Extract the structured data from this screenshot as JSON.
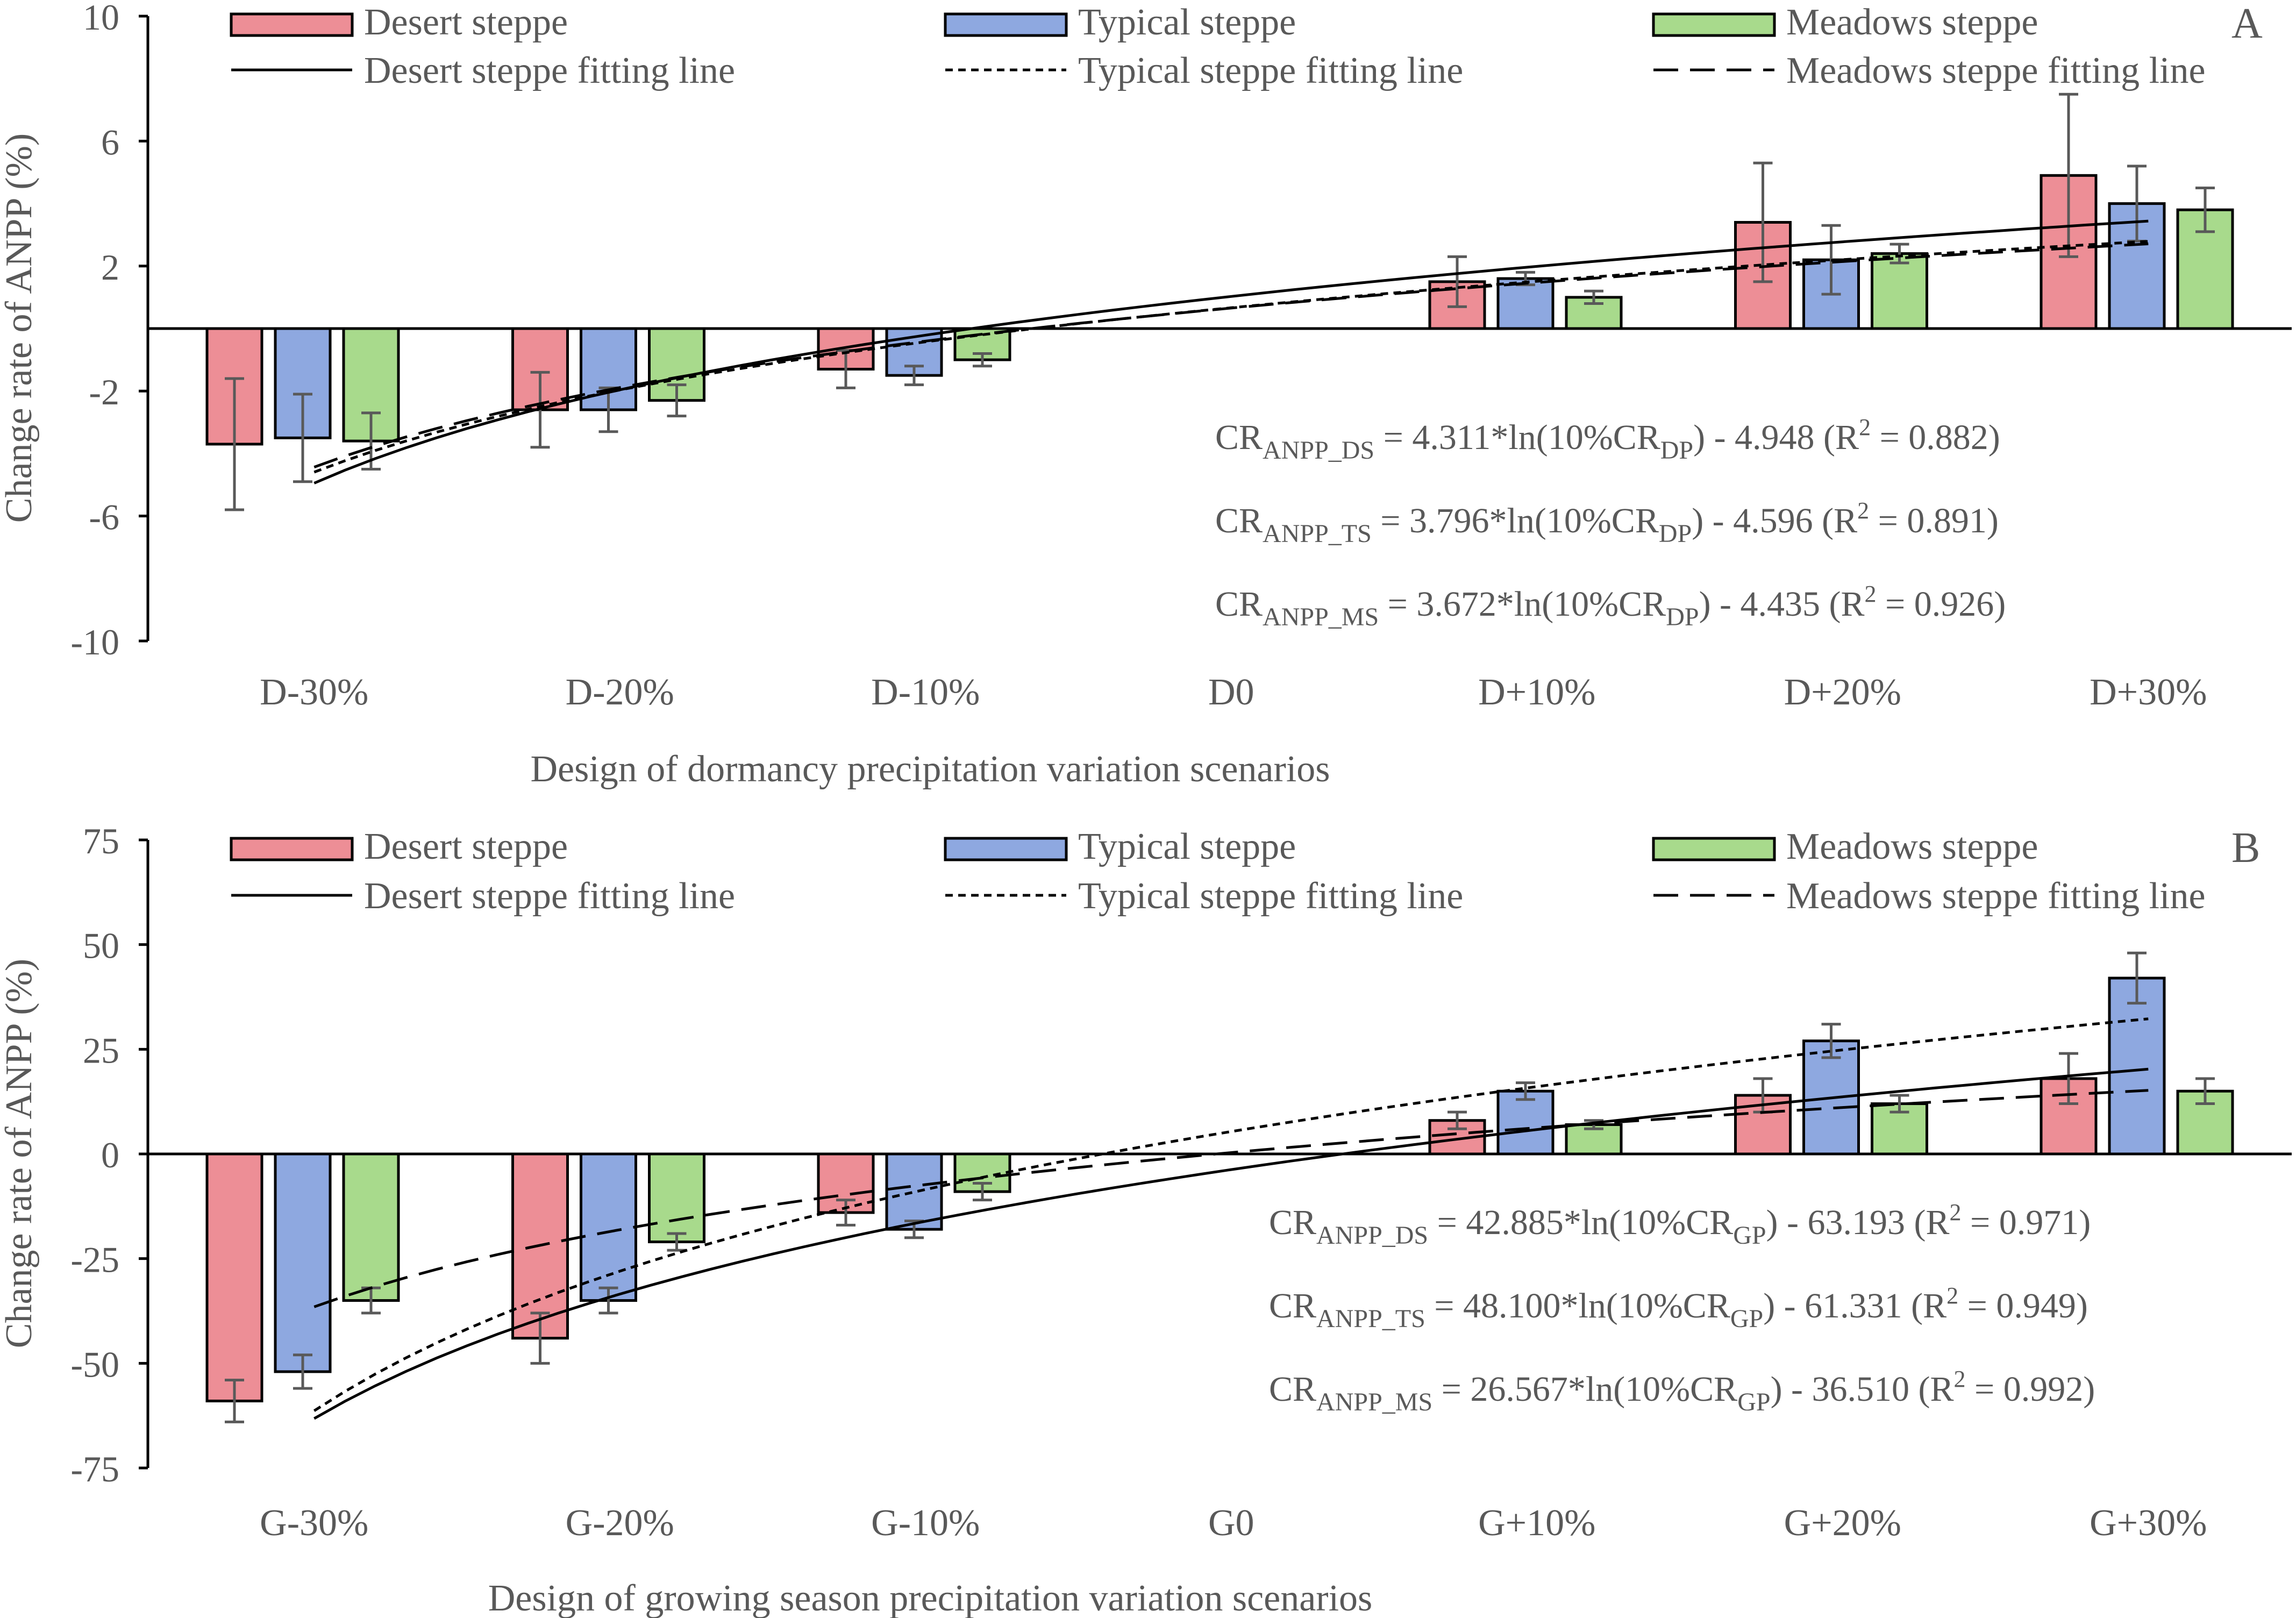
{
  "figure_label": "Change rate of ANPP under precipitation variation scenarios",
  "colors": {
    "desert": "#ED8E96",
    "typical": "#8EA8E0",
    "meadows": "#A8DA8C",
    "axis": "#000000",
    "text": "#595959"
  },
  "chart_data": [
    {
      "type": "bar",
      "panel_label": "A",
      "title": "",
      "xlabel": "Design of dormancy precipitation variation  scenarios",
      "ylabel": "Change rate of ANPP (%)",
      "ylim": [
        -10,
        10
      ],
      "yticks": [
        -10,
        -6,
        -2,
        2,
        6,
        10
      ],
      "grid": false,
      "legend_position": "top",
      "categories": [
        "D-30%",
        "D-20%",
        "D-10%",
        "D0",
        "D+10%",
        "D+20%",
        "D+30%"
      ],
      "series": [
        {
          "name": "Desert steppe",
          "color_key": "desert",
          "values": [
            -3.7,
            -2.6,
            -1.3,
            null,
            1.5,
            3.4,
            4.9
          ],
          "errors": [
            2.1,
            1.2,
            0.6,
            null,
            0.8,
            1.9,
            2.6
          ]
        },
        {
          "name": "Typical steppe",
          "color_key": "typical",
          "values": [
            -3.5,
            -2.6,
            -1.5,
            null,
            1.6,
            2.2,
            4.0
          ],
          "errors": [
            1.4,
            0.7,
            0.3,
            null,
            0.2,
            1.1,
            1.2
          ]
        },
        {
          "name": "Meadows steppe",
          "color_key": "meadows",
          "values": [
            -3.6,
            -2.3,
            -1.0,
            null,
            1.0,
            2.4,
            3.8
          ],
          "errors": [
            0.9,
            0.5,
            0.2,
            null,
            0.2,
            0.3,
            0.7
          ]
        }
      ],
      "fitting_lines": [
        {
          "name": "Desert steppe fitting line",
          "style": "solid",
          "a": 4.311,
          "b": -4.948
        },
        {
          "name": "Typical steppe fitting line",
          "style": "dotted",
          "a": 3.796,
          "b": -4.596
        },
        {
          "name": "Meadows steppe fitting line",
          "style": "dashed",
          "a": 3.672,
          "b": -4.435
        }
      ],
      "equations": [
        {
          "lhs": "CR",
          "lhs_sub": "ANPP_DS",
          "mid": " = 4.311*ln(10%CR",
          "mid_sub": "DP",
          "rhs_pre": ")  - 4.948  (R",
          "sup": "2",
          "rhs_post": " = 0.882)"
        },
        {
          "lhs": "CR",
          "lhs_sub": "ANPP_TS",
          "mid": " = 3.796*ln(10%CR",
          "mid_sub": "DP",
          "rhs_pre": ")  - 4.596  (R",
          "sup": "2",
          "rhs_post": " = 0.891)"
        },
        {
          "lhs": "CR",
          "lhs_sub": "ANPP_MS",
          "mid": " = 3.672*ln(10%CR",
          "mid_sub": "DP",
          "rhs_pre": ")  - 4.435  (R",
          "sup": "2",
          "rhs_post": " = 0.926)"
        }
      ]
    },
    {
      "type": "bar",
      "panel_label": "B",
      "title": "",
      "xlabel": "Design of growing  season precipitation variation  scenarios",
      "ylabel": "Change rate of ANPP (%)",
      "ylim": [
        -75,
        75
      ],
      "yticks": [
        -75,
        -50,
        -25,
        0,
        25,
        50,
        75
      ],
      "grid": false,
      "legend_position": "top",
      "categories": [
        "G-30%",
        "G-20%",
        "G-10%",
        "G0",
        "G+10%",
        "G+20%",
        "G+30%"
      ],
      "series": [
        {
          "name": "Desert steppe",
          "color_key": "desert",
          "values": [
            -59,
            -44,
            -14,
            null,
            8,
            14,
            18
          ],
          "errors": [
            5,
            6,
            3,
            null,
            2,
            4,
            6
          ]
        },
        {
          "name": "Typical steppe",
          "color_key": "typical",
          "values": [
            -52,
            -35,
            -18,
            null,
            15,
            27,
            42
          ],
          "errors": [
            4,
            3,
            2,
            null,
            2,
            4,
            6
          ]
        },
        {
          "name": "Meadows steppe",
          "color_key": "meadows",
          "values": [
            -35,
            -21,
            -9,
            null,
            7,
            12,
            15
          ],
          "errors": [
            3,
            2,
            2,
            null,
            1,
            2,
            3
          ]
        }
      ],
      "fitting_lines": [
        {
          "name": "Desert steppe fitting line",
          "style": "solid",
          "a": 42.885,
          "b": -63.193
        },
        {
          "name": "Typical steppe fitting line",
          "style": "dotted",
          "a": 48.1,
          "b": -61.331
        },
        {
          "name": "Meadows steppe fitting line",
          "style": "dashed",
          "a": 26.567,
          "b": -36.51
        }
      ],
      "equations": [
        {
          "lhs": "CR",
          "lhs_sub": "ANPP_DS",
          "mid": " = 42.885*ln(10%CR",
          "mid_sub": "GP",
          "rhs_pre": ")  - 63.193  (R",
          "sup": "2",
          "rhs_post": " = 0.971)"
        },
        {
          "lhs": "CR",
          "lhs_sub": "ANPP_TS",
          "mid": " = 48.100*ln(10%CR",
          "mid_sub": "GP",
          "rhs_pre": ")  - 61.331  (R",
          "sup": "2",
          "rhs_post": " = 0.949)"
        },
        {
          "lhs": "CR",
          "lhs_sub": "ANPP_MS",
          "mid": " = 26.567*ln(10%CR",
          "mid_sub": "GP",
          "rhs_pre": ")  - 36.510  (R",
          "sup": "2",
          "rhs_post": " = 0.992)"
        }
      ]
    }
  ]
}
